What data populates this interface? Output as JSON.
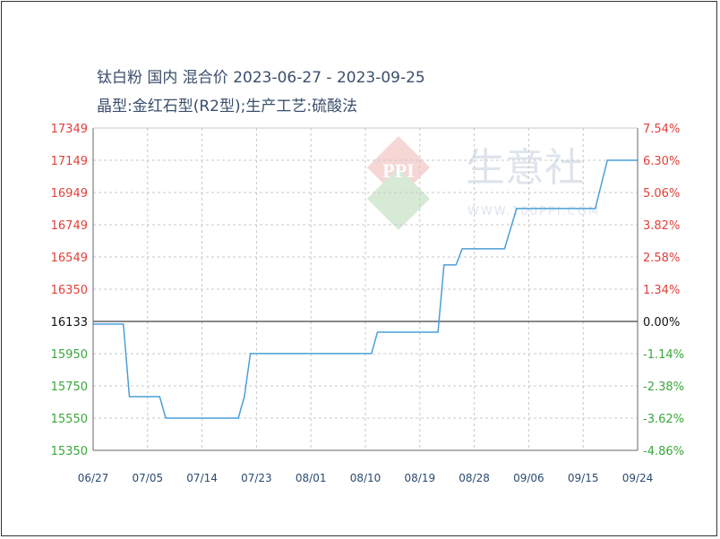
{
  "chart_data": {
    "type": "line",
    "title": "钛白粉 国内 混合价 2023-06-27 - 2023-09-25",
    "subtitle": "晶型:金红石型(R2型);生产工艺:硫酸法",
    "watermark": {
      "logo_text": "PPI",
      "brand_text": "生意社",
      "site_text": "WWW.100PPI.COM"
    },
    "y_left_ticks": [
      "17349",
      "17149",
      "16949",
      "16749",
      "16549",
      "16350",
      "16133",
      "15950",
      "15750",
      "15550",
      "15350"
    ],
    "y_right_ticks": [
      "7.54%",
      "6.30%",
      "5.06%",
      "3.82%",
      "2.58%",
      "1.34%",
      "0.00%",
      "-1.14%",
      "-2.38%",
      "-3.62%",
      "-4.86%"
    ],
    "x_ticks": [
      "06/27",
      "07/05",
      "07/14",
      "07/23",
      "08/01",
      "08/10",
      "08/19",
      "08/28",
      "09/06",
      "09/15",
      "09/24"
    ],
    "x_range": [
      "2023-06-27",
      "2023-09-25"
    ],
    "ylim": [
      15350,
      17349
    ],
    "baseline": 16133,
    "grid": true,
    "colors": {
      "line": "#4a9fd8",
      "up": "#e0403a",
      "down": "#3aa83a",
      "baseline": "#111111",
      "grid": "#c8c8c8",
      "axis": "#666666"
    },
    "series": [
      {
        "points": [
          [
            "2023-06-27",
            16133
          ],
          [
            "2023-07-02",
            16133
          ],
          [
            "2023-07-03",
            15683
          ],
          [
            "2023-07-08",
            15683
          ],
          [
            "2023-07-09",
            15550
          ],
          [
            "2023-07-21",
            15550
          ],
          [
            "2023-07-22",
            15683
          ],
          [
            "2023-07-23",
            15950
          ],
          [
            "2023-08-12",
            15950
          ],
          [
            "2023-08-13",
            16083
          ],
          [
            "2023-08-23",
            16083
          ],
          [
            "2023-08-24",
            16500
          ],
          [
            "2023-08-26",
            16500
          ],
          [
            "2023-08-27",
            16600
          ],
          [
            "2023-09-03",
            16600
          ],
          [
            "2023-09-05",
            16850
          ],
          [
            "2023-09-18",
            16850
          ],
          [
            "2023-09-20",
            17149
          ],
          [
            "2023-09-25",
            17149
          ]
        ]
      }
    ]
  }
}
